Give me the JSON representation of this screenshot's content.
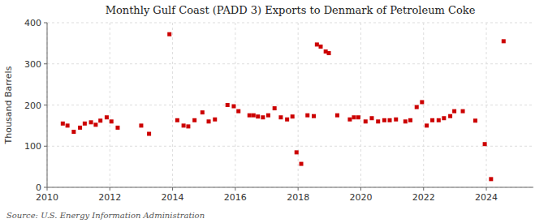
{
  "chart_data": {
    "type": "scatter",
    "title": "Monthly Gulf Coast (PADD 3) Exports to Denmark of Petroleum Coke",
    "y_label": "Thousand Barrels",
    "source": "Source: U.S. Energy Information Administration",
    "color": "#cc0000",
    "marker": "square",
    "grid": true,
    "xlim": [
      2010,
      2025.5
    ],
    "ylim": [
      0,
      400
    ],
    "xticks": [
      2010,
      2012,
      2014,
      2016,
      2018,
      2020,
      2022,
      2024
    ],
    "yticks": [
      0,
      100,
      200,
      300,
      400
    ],
    "x": [
      2010.5,
      2010.65,
      2010.85,
      2011.05,
      2011.2,
      2011.4,
      2011.55,
      2011.7,
      2011.9,
      2012.05,
      2012.25,
      2013.0,
      2013.25,
      2013.9,
      2014.15,
      2014.35,
      2014.5,
      2014.7,
      2014.95,
      2015.15,
      2015.35,
      2015.75,
      2015.95,
      2016.1,
      2016.45,
      2016.58,
      2016.72,
      2016.88,
      2017.05,
      2017.25,
      2017.45,
      2017.65,
      2017.82,
      2017.95,
      2018.1,
      2018.3,
      2018.5,
      2018.6,
      2018.72,
      2018.88,
      2018.98,
      2019.25,
      2019.65,
      2019.78,
      2019.92,
      2020.15,
      2020.35,
      2020.55,
      2020.75,
      2020.92,
      2021.12,
      2021.42,
      2021.58,
      2021.78,
      2021.95,
      2022.1,
      2022.28,
      2022.48,
      2022.65,
      2022.85,
      2022.98,
      2023.25,
      2023.65,
      2023.95,
      2024.15,
      2024.55
    ],
    "values": [
      155,
      150,
      135,
      145,
      155,
      158,
      152,
      162,
      170,
      160,
      145,
      150,
      130,
      372,
      163,
      150,
      148,
      163,
      182,
      160,
      165,
      200,
      197,
      185,
      175,
      175,
      172,
      170,
      175,
      192,
      170,
      165,
      172,
      85,
      57,
      175,
      173,
      347,
      342,
      330,
      326,
      175,
      165,
      170,
      170,
      160,
      168,
      160,
      163,
      163,
      165,
      160,
      163,
      195,
      207,
      150,
      163,
      163,
      168,
      173,
      185,
      185,
      162,
      105,
      20,
      355
    ]
  }
}
